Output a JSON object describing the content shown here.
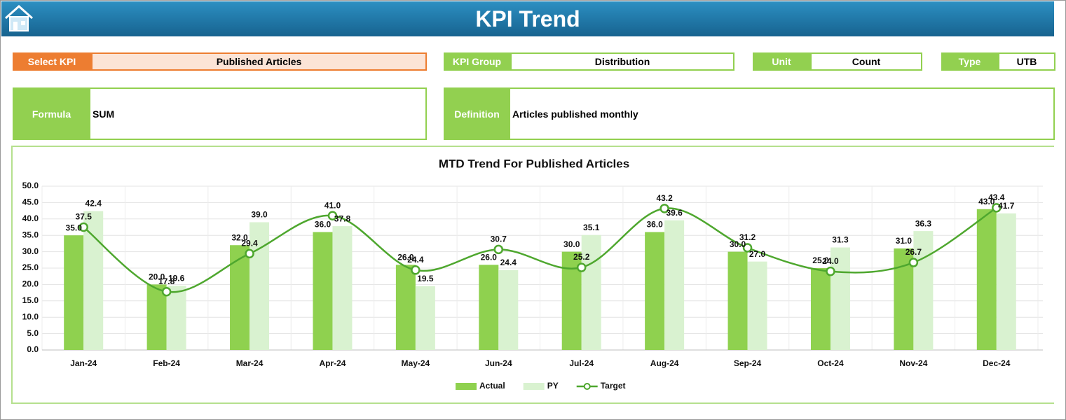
{
  "header": {
    "title": "KPI Trend"
  },
  "fields": [
    {
      "label": "Select KPI",
      "value": "Published Articles"
    },
    {
      "label": "KPI Group",
      "value": "Distribution"
    },
    {
      "label": "Unit",
      "value": "Count"
    },
    {
      "label": "Type",
      "value": "UTB"
    },
    {
      "label": "Formula",
      "value": "SUM"
    },
    {
      "label": "Definition",
      "value": "Articles published monthly"
    }
  ],
  "chart_data": {
    "type": "combo",
    "title": "MTD Trend For Published Articles",
    "categories": [
      "Jan-24",
      "Feb-24",
      "Mar-24",
      "Apr-24",
      "May-24",
      "Jun-24",
      "Jul-24",
      "Aug-24",
      "Sep-24",
      "Oct-24",
      "Nov-24",
      "Dec-24"
    ],
    "ylim": [
      0,
      50
    ],
    "yticks": [
      {
        "value": 0,
        "label": "0.0"
      },
      {
        "value": 5,
        "label": "5.0"
      },
      {
        "value": 10,
        "label": "10.0"
      },
      {
        "value": 15,
        "label": "15.0"
      },
      {
        "value": 20,
        "label": "20.0"
      },
      {
        "value": 25,
        "label": "25.0"
      },
      {
        "value": 30,
        "label": "30.0"
      },
      {
        "value": 35,
        "label": "35.0"
      },
      {
        "value": 40,
        "label": "40.0"
      },
      {
        "value": 45,
        "label": "45.0"
      },
      {
        "value": 50,
        "label": "50.0"
      }
    ],
    "grid": true,
    "legend": "bottom",
    "series": [
      {
        "name": "Actual",
        "type": "bar",
        "color": "#8fd14f",
        "values": [
          35,
          20,
          32,
          36,
          26,
          26,
          30,
          36,
          30,
          25,
          31,
          43
        ],
        "value_labels": [
          "35.0",
          "20.0",
          "32.0",
          "36.0",
          "26.0",
          "26.0",
          "30.0",
          "36.0",
          "30.0",
          "25.0",
          "31.0",
          "43.0"
        ]
      },
      {
        "name": "PY",
        "type": "bar",
        "color": "#d9f2d0",
        "values": [
          42.4,
          19.6,
          39,
          37.8,
          19.5,
          24.4,
          35.1,
          39.6,
          27,
          31.3,
          36.3,
          41.7
        ],
        "value_labels": [
          "42.4",
          "19.6",
          "39.0",
          "37.8",
          "19.5",
          "24.4",
          "35.1",
          "39.6",
          "27.0",
          "31.3",
          "36.3",
          "41.7"
        ]
      },
      {
        "name": "Target",
        "type": "line",
        "color": "#4ea72e",
        "values": [
          37.5,
          17.8,
          29.4,
          41,
          24.4,
          30.7,
          25.2,
          43.2,
          31.2,
          24,
          26.7,
          43.4
        ],
        "value_labels": [
          "37.5",
          "17.8",
          "29.4",
          "41.0",
          "24.4",
          "30.7",
          "25.2",
          "43.2",
          "31.2",
          "24.0",
          "26.7",
          "43.4"
        ]
      }
    ]
  }
}
